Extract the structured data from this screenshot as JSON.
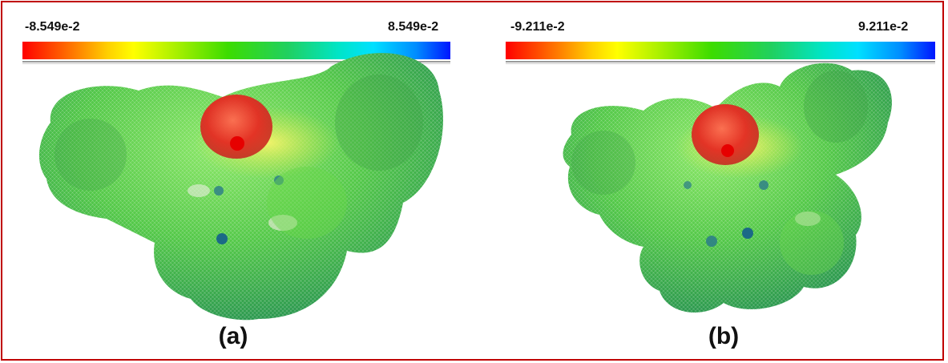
{
  "panels": [
    {
      "id": "a",
      "scale_min": "-8.549e-2",
      "scale_max": "8.549e-2",
      "caption": "(a)"
    },
    {
      "id": "b",
      "scale_min": "-9.211e-2",
      "scale_max": "9.211e-2",
      "caption": "(b)"
    }
  ],
  "colors": {
    "frame_border": "#c00000",
    "surface_green": "#5fce4a",
    "negative_region": "#e8222a",
    "positive_region": "#0020ff"
  }
}
